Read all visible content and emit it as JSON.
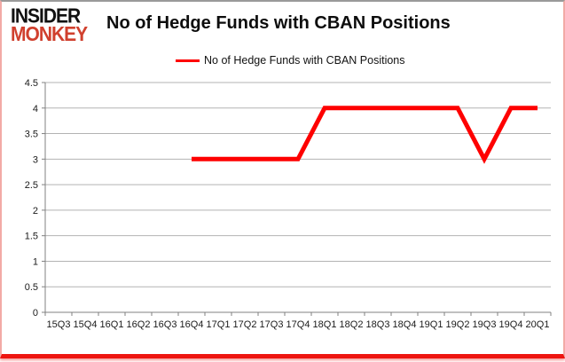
{
  "logo": {
    "line1": "INSIDER",
    "line2": "MONKEY"
  },
  "header": {
    "title": "No of Hedge Funds with CBAN Positions"
  },
  "legend": {
    "label": "No of Hedge Funds with CBAN Positions"
  },
  "colors": {
    "series_line": "#fe0000",
    "logo_red": "#d0402e",
    "grid": "#b3b3b3",
    "axis": "#808080",
    "tick_text": "#1a1a1a",
    "border_bottom_red": "#ee1510"
  },
  "chart_data": {
    "type": "line",
    "title": "No of Hedge Funds with CBAN Positions",
    "categories": [
      "15Q3",
      "15Q4",
      "16Q1",
      "16Q2",
      "16Q3",
      "16Q4",
      "17Q1",
      "17Q2",
      "17Q3",
      "17Q4",
      "18Q1",
      "18Q2",
      "18Q3",
      "18Q4",
      "19Q1",
      "19Q2",
      "19Q3",
      "19Q4",
      "20Q1"
    ],
    "series": [
      {
        "name": "No of Hedge Funds with CBAN Positions",
        "color": "#fe0000",
        "values": [
          null,
          null,
          null,
          null,
          null,
          3,
          3,
          3,
          3,
          3,
          4,
          4,
          4,
          4,
          4,
          4,
          3,
          4,
          4
        ]
      }
    ],
    "xlabel": "",
    "ylabel": "",
    "ylim": [
      0,
      4.5
    ],
    "ytick_step": 0.5,
    "yticks": [
      "0",
      "0.5",
      "1",
      "1.5",
      "2",
      "2.5",
      "3",
      "3.5",
      "4",
      "4.5"
    ],
    "grid": true,
    "legend_position": "top"
  }
}
